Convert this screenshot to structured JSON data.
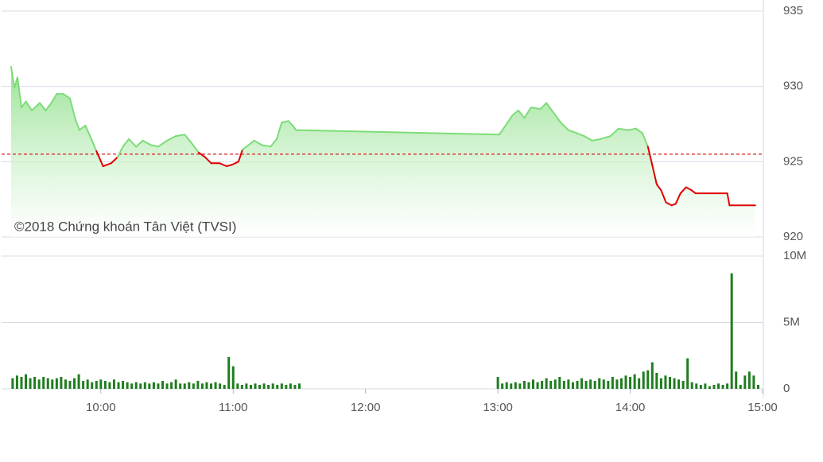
{
  "chart_data": [
    {
      "type": "line",
      "annotation": "©2018 Chứng khoán Tân Việt (TVSI)",
      "xlim": [
        555,
        900
      ],
      "ylim": [
        920,
        935
      ],
      "yticks": [
        920,
        925,
        930,
        935
      ],
      "reference": 925.5,
      "grid": true,
      "color": "#7ddc78",
      "below_color": "#e00000",
      "x": [
        559.3,
        560.8,
        562.2,
        564,
        566,
        568.7,
        572.3,
        575,
        578,
        580,
        583,
        586,
        588.5,
        590.3,
        593,
        595.7,
        598,
        601,
        604.7,
        607.6,
        610,
        612.7,
        616,
        619,
        622.8,
        626,
        630,
        634,
        638,
        640.8,
        644.4,
        647.3,
        650,
        653.8,
        657,
        659.5,
        662.4,
        664.2,
        667.8,
        669.6,
        673,
        677,
        679.7,
        682,
        685,
        687,
        688.5,
        780.6,
        783,
        786.7,
        789.3,
        792,
        795,
        799.3,
        802,
        805,
        808.5,
        812,
        815.6,
        819.2,
        822.8,
        826.4,
        831,
        834.7,
        839,
        842.6,
        845.5,
        848,
        849.8,
        852,
        854,
        856.2,
        858.8,
        860.6,
        862.8,
        865.3,
        867.8,
        869.6,
        884,
        885,
        896.7
      ],
      "values": [
        931.3,
        929.9,
        930.6,
        928.6,
        929,
        928.4,
        928.9,
        928.4,
        929,
        929.5,
        929.5,
        929.2,
        927.8,
        927.1,
        927.4,
        926.5,
        925.7,
        924.7,
        924.9,
        925.3,
        926,
        926.5,
        926,
        926.4,
        926.1,
        926,
        926.4,
        926.7,
        926.8,
        926.3,
        925.6,
        925.3,
        924.9,
        924.9,
        924.7,
        924.8,
        925,
        925.8,
        926.2,
        926.4,
        926.1,
        926,
        926.5,
        927.6,
        927.7,
        927.4,
        927.1,
        926.8,
        927.3,
        928.1,
        928.4,
        927.9,
        928.6,
        928.5,
        928.9,
        928.3,
        927.6,
        927.1,
        926.9,
        926.7,
        926.4,
        926.5,
        926.7,
        927.2,
        927.1,
        927.2,
        926.9,
        926,
        924.9,
        923.5,
        923.1,
        922.3,
        922.1,
        922.2,
        922.9,
        923.3,
        923.1,
        922.9,
        922.9,
        922.1,
        922.1
      ]
    },
    {
      "type": "bar",
      "xlim": [
        555,
        900
      ],
      "xticks": [
        {
          "value": 600,
          "label": "10:00"
        },
        {
          "value": 660,
          "label": "11:00"
        },
        {
          "value": 720,
          "label": "12:00"
        },
        {
          "value": 780,
          "label": "13:00"
        },
        {
          "value": 840,
          "label": "14:00"
        },
        {
          "value": 900,
          "label": "15:00"
        }
      ],
      "ylim": [
        0,
        10
      ],
      "yticks": [
        0,
        {
          "value": 5,
          "label": "5M"
        },
        {
          "value": 10,
          "label": "10M"
        }
      ],
      "grid": true,
      "color": "#1f7d1f",
      "x": [
        560,
        562,
        564,
        566,
        568,
        570,
        572,
        574,
        576,
        578,
        580,
        582,
        584,
        586,
        588,
        590,
        592,
        594,
        596,
        598,
        600,
        602,
        604,
        606,
        608,
        610,
        612,
        614,
        616,
        618,
        620,
        622,
        624,
        626,
        628,
        630,
        632,
        634,
        636,
        638,
        640,
        642,
        644,
        646,
        648,
        650,
        652,
        654,
        656,
        658,
        660,
        662,
        664,
        666,
        668,
        670,
        672,
        674,
        676,
        678,
        680,
        682,
        684,
        686,
        688,
        690,
        780,
        782,
        784,
        786,
        788,
        790,
        792,
        794,
        796,
        798,
        800,
        802,
        804,
        806,
        808,
        810,
        812,
        814,
        816,
        818,
        820,
        822,
        824,
        826,
        828,
        830,
        832,
        834,
        836,
        838,
        840,
        842,
        844,
        846,
        848,
        850,
        852,
        854,
        856,
        858,
        860,
        862,
        864,
        866,
        868,
        870,
        872,
        874,
        876,
        878,
        880,
        882,
        884,
        886,
        888,
        890,
        892,
        894,
        896,
        898
      ],
      "values": [
        0.8,
        1.0,
        0.9,
        1.1,
        0.8,
        0.9,
        0.7,
        0.9,
        0.8,
        0.7,
        0.8,
        0.9,
        0.7,
        0.6,
        0.8,
        1.1,
        0.6,
        0.7,
        0.5,
        0.6,
        0.7,
        0.6,
        0.5,
        0.7,
        0.5,
        0.6,
        0.5,
        0.4,
        0.5,
        0.4,
        0.5,
        0.4,
        0.5,
        0.4,
        0.6,
        0.4,
        0.5,
        0.7,
        0.4,
        0.4,
        0.5,
        0.4,
        0.6,
        0.4,
        0.5,
        0.4,
        0.5,
        0.4,
        0.3,
        2.4,
        1.7,
        0.4,
        0.3,
        0.4,
        0.3,
        0.4,
        0.3,
        0.4,
        0.3,
        0.4,
        0.3,
        0.4,
        0.3,
        0.4,
        0.3,
        0.4,
        0.9,
        0.4,
        0.5,
        0.4,
        0.5,
        0.4,
        0.6,
        0.5,
        0.7,
        0.5,
        0.6,
        0.8,
        0.6,
        0.7,
        0.9,
        0.6,
        0.7,
        0.5,
        0.6,
        0.8,
        0.6,
        0.7,
        0.6,
        0.8,
        0.7,
        0.6,
        0.9,
        0.7,
        0.8,
        1.0,
        0.9,
        1.1,
        0.8,
        1.3,
        1.4,
        2.0,
        1.2,
        0.8,
        1.0,
        0.9,
        0.8,
        0.7,
        0.6,
        2.3,
        0.5,
        0.4,
        0.3,
        0.4,
        0.2,
        0.3,
        0.4,
        0.3,
        0.4,
        8.7,
        1.3,
        0.3,
        1.0,
        1.3,
        1.0,
        0.3
      ]
    }
  ]
}
